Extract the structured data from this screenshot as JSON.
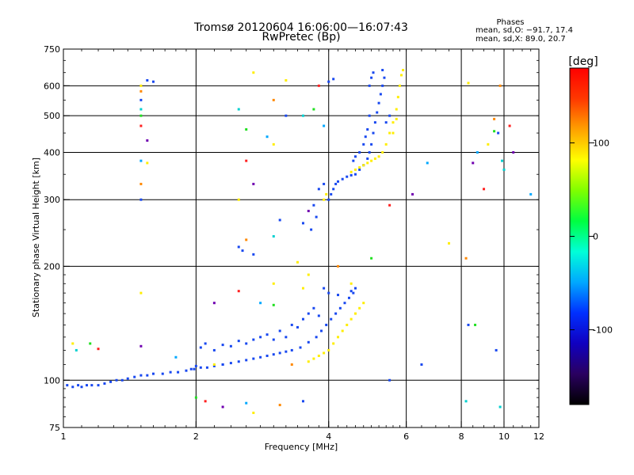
{
  "header": {
    "title_line1": "Tromsø 20120604 16:06:00—16:07:43",
    "title_line2": "RwPretec (Bp)",
    "phases_heading": "Phases",
    "phases_line1": "mean, sd,O: −91.7, 17.4",
    "phases_line2": "mean, sd,X:  89.0, 20.7"
  },
  "chart_data": {
    "type": "scatter",
    "xlabel": "Frequency [MHz]",
    "ylabel": "Stationary phase Virtual Height [km]",
    "x_scale": "log",
    "y_scale": "log",
    "xlim": [
      1,
      12
    ],
    "ylim": [
      75,
      750
    ],
    "x_ticks": [
      1,
      2,
      4,
      6,
      8,
      10,
      12
    ],
    "x_tick_labels": [
      "1",
      "2",
      "4",
      "6",
      "8",
      "10",
      "12"
    ],
    "y_ticks": [
      75,
      100,
      200,
      300,
      400,
      500,
      600,
      750
    ],
    "y_tick_labels": [
      "75",
      "100",
      "200",
      "300",
      "400",
      "500",
      "600",
      "750"
    ],
    "x_grid": [
      2,
      4,
      6,
      8,
      10
    ],
    "y_grid": [
      100,
      200,
      300,
      400,
      500,
      600
    ],
    "colorbar": {
      "label": "[deg]",
      "range": [
        -180,
        180
      ],
      "ticks": [
        100,
        0,
        -100
      ],
      "tick_labels": [
        "100",
        "0",
        "-100"
      ],
      "colors": [
        "#000000",
        "#2a0060",
        "#1000c0",
        "#0030ff",
        "#00a8ff",
        "#00ffd8",
        "#00ff40",
        "#80ff00",
        "#ffff00",
        "#ffa000",
        "#ff3800",
        "#ff0000"
      ]
    },
    "series": [
      {
        "mode": "O",
        "color": "#1848f0",
        "points": [
          [
            1.02,
            97
          ],
          [
            1.05,
            96
          ],
          [
            1.08,
            97
          ],
          [
            1.1,
            96
          ],
          [
            1.13,
            97
          ],
          [
            1.16,
            97
          ],
          [
            1.2,
            97
          ],
          [
            1.24,
            98
          ],
          [
            1.28,
            99
          ],
          [
            1.32,
            100
          ],
          [
            1.36,
            100
          ],
          [
            1.4,
            101
          ],
          [
            1.45,
            102
          ],
          [
            1.5,
            103
          ],
          [
            1.55,
            103
          ],
          [
            1.6,
            104
          ],
          [
            1.68,
            104
          ],
          [
            1.75,
            105
          ],
          [
            1.82,
            105
          ],
          [
            1.9,
            106
          ],
          [
            1.98,
            107
          ],
          [
            2.05,
            108
          ],
          [
            2.12,
            108
          ],
          [
            2.2,
            109
          ],
          [
            2.3,
            110
          ],
          [
            2.4,
            111
          ],
          [
            2.5,
            112
          ],
          [
            2.6,
            113
          ],
          [
            2.7,
            114
          ],
          [
            2.8,
            115
          ],
          [
            2.9,
            116
          ],
          [
            3.0,
            117
          ],
          [
            3.1,
            118
          ],
          [
            3.2,
            119
          ],
          [
            3.3,
            120
          ],
          [
            3.45,
            122
          ],
          [
            3.6,
            126
          ],
          [
            3.75,
            130
          ],
          [
            3.85,
            135
          ],
          [
            3.95,
            140
          ],
          [
            4.05,
            145
          ],
          [
            4.15,
            150
          ],
          [
            4.25,
            155
          ],
          [
            4.35,
            160
          ],
          [
            4.45,
            165
          ],
          [
            4.55,
            170
          ],
          [
            3.9,
            175
          ],
          [
            4.0,
            170
          ],
          [
            4.2,
            168
          ],
          [
            4.5,
            172
          ],
          [
            4.6,
            175
          ],
          [
            2.05,
            122
          ],
          [
            2.1,
            125
          ],
          [
            2.2,
            120
          ],
          [
            2.3,
            124
          ],
          [
            2.4,
            123
          ],
          [
            2.5,
            127
          ],
          [
            2.6,
            125
          ],
          [
            2.7,
            128
          ],
          [
            2.8,
            130
          ],
          [
            2.9,
            132
          ],
          [
            3.0,
            128
          ],
          [
            3.1,
            135
          ],
          [
            3.2,
            130
          ],
          [
            3.3,
            140
          ],
          [
            3.4,
            138
          ],
          [
            3.5,
            145
          ],
          [
            3.6,
            150
          ],
          [
            3.7,
            155
          ],
          [
            3.8,
            148
          ],
          [
            4.0,
            300
          ],
          [
            4.05,
            310
          ],
          [
            4.1,
            320
          ],
          [
            4.15,
            330
          ],
          [
            4.2,
            335
          ],
          [
            4.3,
            340
          ],
          [
            4.4,
            345
          ],
          [
            4.5,
            348
          ],
          [
            4.6,
            350
          ],
          [
            4.7,
            360
          ],
          [
            4.8,
            370
          ],
          [
            4.9,
            385
          ],
          [
            4.95,
            400
          ],
          [
            5.0,
            420
          ],
          [
            5.05,
            450
          ],
          [
            5.1,
            480
          ],
          [
            5.15,
            510
          ],
          [
            5.2,
            540
          ],
          [
            5.25,
            570
          ],
          [
            5.3,
            600
          ],
          [
            5.35,
            630
          ],
          [
            4.95,
            600
          ],
          [
            5.0,
            630
          ],
          [
            5.05,
            650
          ],
          [
            5.3,
            660
          ],
          [
            4.55,
            380
          ],
          [
            4.6,
            390
          ],
          [
            4.7,
            400
          ],
          [
            4.8,
            420
          ],
          [
            4.85,
            440
          ],
          [
            4.9,
            460
          ],
          [
            4.95,
            500
          ],
          [
            3.7,
            290
          ],
          [
            3.75,
            270
          ],
          [
            3.65,
            250
          ],
          [
            3.5,
            260
          ],
          [
            3.8,
            320
          ],
          [
            3.9,
            330
          ],
          [
            2.5,
            225
          ],
          [
            2.55,
            220
          ],
          [
            2.7,
            215
          ],
          [
            1.55,
            620
          ],
          [
            1.6,
            615
          ],
          [
            4.0,
            615
          ],
          [
            4.1,
            625
          ],
          [
            2.3,
            110
          ],
          [
            2.0,
            109
          ],
          [
            1.95,
            107
          ],
          [
            5.5,
            500
          ],
          [
            5.4,
            480
          ]
        ]
      },
      {
        "mode": "X",
        "color": "#ffee00",
        "points": [
          [
            3.6,
            112
          ],
          [
            3.7,
            114
          ],
          [
            3.8,
            116
          ],
          [
            3.9,
            118
          ],
          [
            4.0,
            120
          ],
          [
            4.1,
            125
          ],
          [
            4.2,
            130
          ],
          [
            4.3,
            135
          ],
          [
            4.4,
            140
          ],
          [
            4.5,
            145
          ],
          [
            4.6,
            150
          ],
          [
            4.7,
            155
          ],
          [
            4.8,
            160
          ],
          [
            4.5,
            355
          ],
          [
            4.6,
            360
          ],
          [
            4.7,
            365
          ],
          [
            4.8,
            370
          ],
          [
            4.9,
            375
          ],
          [
            5.0,
            380
          ],
          [
            5.1,
            385
          ],
          [
            5.2,
            390
          ],
          [
            5.3,
            400
          ],
          [
            5.4,
            420
          ],
          [
            5.5,
            450
          ],
          [
            5.6,
            480
          ],
          [
            5.7,
            520
          ],
          [
            5.75,
            560
          ],
          [
            5.8,
            600
          ],
          [
            5.85,
            640
          ],
          [
            5.9,
            660
          ],
          [
            5.6,
            450
          ],
          [
            5.7,
            490
          ],
          [
            3.9,
            300
          ],
          [
            3.95,
            310
          ],
          [
            2.7,
            650
          ],
          [
            3.2,
            620
          ],
          [
            2.2,
            110
          ],
          [
            1.05,
            125
          ],
          [
            1.5,
            170
          ],
          [
            3.4,
            205
          ],
          [
            3.6,
            190
          ],
          [
            3.0,
            180
          ]
        ]
      },
      {
        "mode": "noise",
        "color": "mixed",
        "points": [
          [
            1.5,
            600
          ],
          [
            1.5,
            580
          ],
          [
            1.5,
            550
          ],
          [
            1.5,
            520
          ],
          [
            1.5,
            500
          ],
          [
            1.5,
            470
          ],
          [
            1.55,
            430
          ],
          [
            1.5,
            380
          ],
          [
            1.55,
            375
          ],
          [
            1.5,
            330
          ],
          [
            1.5,
            300
          ],
          [
            2.5,
            520
          ],
          [
            2.6,
            460
          ],
          [
            2.6,
            380
          ],
          [
            2.7,
            330
          ],
          [
            2.9,
            440
          ],
          [
            3.0,
            420
          ],
          [
            3.0,
            550
          ],
          [
            3.2,
            500
          ],
          [
            3.5,
            500
          ],
          [
            3.7,
            520
          ],
          [
            3.8,
            600
          ],
          [
            3.6,
            280
          ],
          [
            3.9,
            470
          ],
          [
            2.5,
            300
          ],
          [
            2.6,
            235
          ],
          [
            3.1,
            265
          ],
          [
            3.0,
            240
          ],
          [
            5.0,
            210
          ],
          [
            5.5,
            290
          ],
          [
            6.2,
            310
          ],
          [
            6.7,
            375
          ],
          [
            7.5,
            230
          ],
          [
            8.2,
            210
          ],
          [
            8.3,
            140
          ],
          [
            8.2,
            88
          ],
          [
            8.6,
            140
          ],
          [
            9.0,
            320
          ],
          [
            8.5,
            375
          ],
          [
            8.7,
            400
          ],
          [
            9.2,
            420
          ],
          [
            9.5,
            490
          ],
          [
            9.7,
            450
          ],
          [
            9.9,
            380
          ],
          [
            9.5,
            455
          ],
          [
            10.3,
            470
          ],
          [
            10.5,
            400
          ],
          [
            11.5,
            310
          ],
          [
            8.3,
            610
          ],
          [
            9.8,
            600
          ],
          [
            9.6,
            120
          ],
          [
            10.0,
            360
          ],
          [
            2.0,
            90
          ],
          [
            2.1,
            88
          ],
          [
            2.3,
            85
          ],
          [
            2.6,
            87
          ],
          [
            2.7,
            82
          ],
          [
            3.1,
            86
          ],
          [
            3.5,
            88
          ],
          [
            1.07,
            120
          ],
          [
            1.15,
            125
          ],
          [
            1.2,
            121
          ],
          [
            1.5,
            123
          ],
          [
            1.8,
            115
          ],
          [
            4.5,
            180
          ],
          [
            3.3,
            110
          ],
          [
            5.5,
            100
          ],
          [
            9.8,
            85
          ],
          [
            3.0,
            158
          ],
          [
            2.5,
            172
          ],
          [
            2.2,
            160
          ],
          [
            2.8,
            160
          ],
          [
            3.5,
            175
          ],
          [
            4.2,
            200
          ],
          [
            6.5,
            110
          ]
        ]
      }
    ]
  }
}
